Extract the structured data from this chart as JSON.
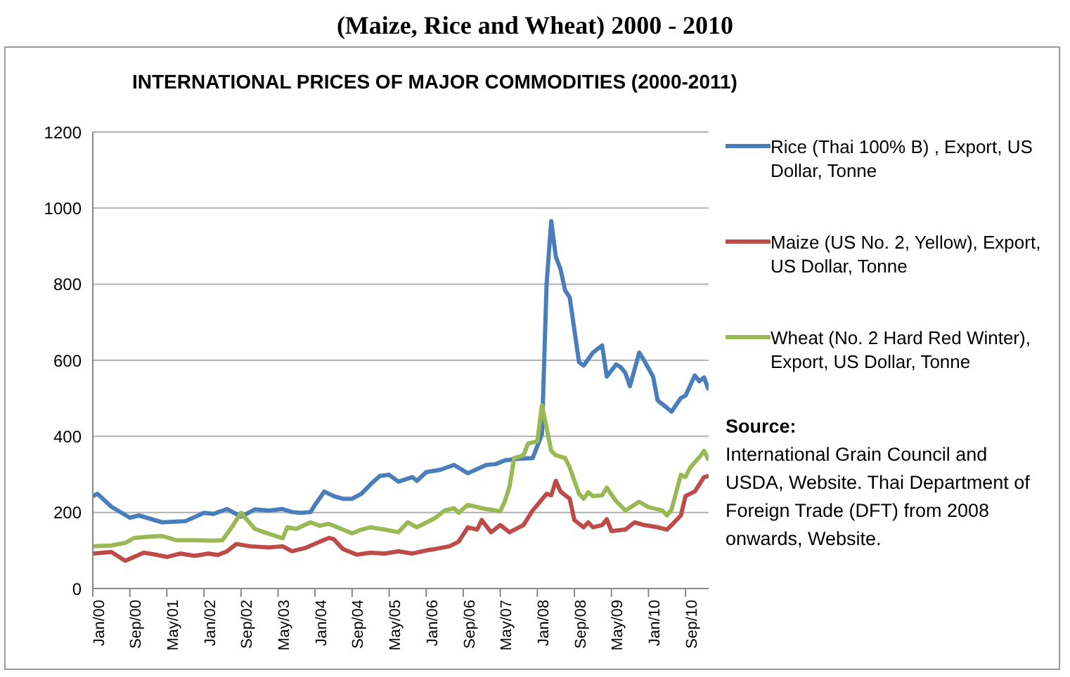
{
  "chart_data": {
    "type": "line",
    "title": "(Maize, Rice and Wheat) 2000 - 2010",
    "subtitle": "INTERNATIONAL PRICES OF MAJOR COMMODITIES (2000-2011)",
    "annotations": [
      "Source:",
      "International Grain Council and USDA, Website. Thai Department of Foreign Trade (DFT) from 2008 onwards, Website."
    ],
    "xlim": [
      "2000-01",
      "2011-02"
    ],
    "xticks": [
      {
        "value": "2000-01",
        "label": "Jan/00"
      },
      {
        "value": "2000-09",
        "label": "Sep/00"
      },
      {
        "value": "2001-05",
        "label": "May/01"
      },
      {
        "value": "2002-01",
        "label": "Jan/02"
      },
      {
        "value": "2002-09",
        "label": "Sep/02"
      },
      {
        "value": "2003-05",
        "label": "May/03"
      },
      {
        "value": "2004-01",
        "label": "Jan/04"
      },
      {
        "value": "2004-09",
        "label": "Sep/04"
      },
      {
        "value": "2005-05",
        "label": "May/05"
      },
      {
        "value": "2006-01",
        "label": "Jan/06"
      },
      {
        "value": "2006-09",
        "label": "Sep/06"
      },
      {
        "value": "2007-05",
        "label": "May/07"
      },
      {
        "value": "2008-01",
        "label": "Jan/08"
      },
      {
        "value": "2008-09",
        "label": "Sep/08"
      },
      {
        "value": "2009-05",
        "label": "May/09"
      },
      {
        "value": "2010-01",
        "label": "Jan/10"
      },
      {
        "value": "2010-09",
        "label": "Sep/10"
      }
    ],
    "ylim": [
      0,
      1200
    ],
    "yticks": [
      0,
      200,
      400,
      600,
      800,
      1000,
      1200
    ],
    "grid": "y",
    "legend": "right",
    "marker": "none",
    "line_style": "solid",
    "series": [
      {
        "name": "Rice (Thai 100% B) , Export, US Dollar, Tonne",
        "color": "#4a7ebb",
        "x": [
          "2000-01",
          "2000-02",
          "2000-05",
          "2000-09",
          "2000-11",
          "2001-04",
          "2001-09",
          "2002-01",
          "2002-03",
          "2002-06",
          "2002-09",
          "2002-12",
          "2003-03",
          "2003-06",
          "2003-08",
          "2003-10",
          "2003-12",
          "2004-01",
          "2004-03",
          "2004-05",
          "2004-07",
          "2004-09",
          "2004-11",
          "2005-01",
          "2005-03",
          "2005-05",
          "2005-07",
          "2005-10",
          "2005-11",
          "2006-01",
          "2006-04",
          "2006-07",
          "2006-10",
          "2007-02",
          "2007-04",
          "2007-06",
          "2007-09",
          "2007-12",
          "2008-02",
          "2008-03",
          "2008-04",
          "2008-05",
          "2008-06",
          "2008-07",
          "2008-08",
          "2008-10",
          "2008-11",
          "2009-01",
          "2009-03",
          "2009-04",
          "2009-06",
          "2009-07",
          "2009-08",
          "2009-09",
          "2009-11",
          "2009-12",
          "2010-02",
          "2010-03",
          "2010-05",
          "2010-06",
          "2010-08",
          "2010-09",
          "2010-11",
          "2010-12",
          "2011-01",
          "2011-02"
        ],
        "values": [
          243,
          249,
          215,
          186,
          192,
          174,
          177,
          199,
          196,
          209,
          189,
          208,
          205,
          209,
          201,
          199,
          201,
          220,
          255,
          243,
          236,
          236,
          249,
          274,
          296,
          299,
          281,
          293,
          283,
          306,
          312,
          325,
          303,
          325,
          327,
          337,
          341,
          343,
          406,
          800,
          966,
          872,
          840,
          784,
          765,
          595,
          586,
          620,
          639,
          557,
          589,
          582,
          567,
          532,
          620,
          601,
          557,
          494,
          475,
          465,
          501,
          507,
          560,
          545,
          555,
          522
        ]
      },
      {
        "name": "Maize (US No. 2, Yellow), Export, US Dollar, Tonne",
        "color": "#be4b48",
        "x": [
          "2000-01",
          "2000-05",
          "2000-08",
          "2000-12",
          "2001-03",
          "2001-05",
          "2001-08",
          "2001-11",
          "2002-02",
          "2002-04",
          "2002-06",
          "2002-08",
          "2002-11",
          "2003-03",
          "2003-06",
          "2003-08",
          "2003-11",
          "2004-02",
          "2004-04",
          "2004-05",
          "2004-07",
          "2004-10",
          "2005-01",
          "2005-04",
          "2005-07",
          "2005-10",
          "2006-01",
          "2006-03",
          "2006-06",
          "2006-08",
          "2006-10",
          "2006-12",
          "2007-01",
          "2007-03",
          "2007-05",
          "2007-07",
          "2007-10",
          "2007-12",
          "2008-03",
          "2008-04",
          "2008-05",
          "2008-06",
          "2008-08",
          "2008-09",
          "2008-11",
          "2008-12",
          "2009-01",
          "2009-03",
          "2009-04",
          "2009-05",
          "2009-08",
          "2009-10",
          "2009-12",
          "2010-03",
          "2010-05",
          "2010-06",
          "2010-08",
          "2010-09",
          "2010-11",
          "2010-12",
          "2011-01",
          "2011-02"
        ],
        "values": [
          92,
          96,
          73,
          94,
          88,
          83,
          92,
          86,
          92,
          88,
          98,
          117,
          111,
          108,
          111,
          98,
          107,
          123,
          133,
          130,
          104,
          89,
          94,
          92,
          98,
          92,
          100,
          104,
          111,
          123,
          161,
          155,
          180,
          148,
          167,
          148,
          167,
          205,
          249,
          245,
          283,
          255,
          236,
          180,
          161,
          174,
          161,
          167,
          182,
          151,
          155,
          174,
          167,
          161,
          155,
          167,
          192,
          243,
          255,
          274,
          293,
          296
        ]
      },
      {
        "name": "Wheat (No. 2 Hard Red Winter), Export, US Dollar, Tonne",
        "color": "#98b954",
        "x": [
          "2000-01",
          "2000-05",
          "2000-08",
          "2000-10",
          "2001-01",
          "2001-04",
          "2001-07",
          "2001-11",
          "2002-03",
          "2002-05",
          "2002-07",
          "2002-09",
          "2002-12",
          "2003-02",
          "2003-04",
          "2003-06",
          "2003-07",
          "2003-09",
          "2003-12",
          "2004-02",
          "2004-04",
          "2004-07",
          "2004-09",
          "2004-11",
          "2005-01",
          "2005-04",
          "2005-07",
          "2005-09",
          "2005-11",
          "2005-12",
          "2006-03",
          "2006-05",
          "2006-07",
          "2006-08",
          "2006-10",
          "2007-01",
          "2007-05",
          "2007-06",
          "2007-07",
          "2007-08",
          "2007-10",
          "2007-11",
          "2008-01",
          "2008-02",
          "2008-04",
          "2008-05",
          "2008-07",
          "2008-08",
          "2008-10",
          "2008-11",
          "2008-12",
          "2009-01",
          "2009-03",
          "2009-04",
          "2009-06",
          "2009-08",
          "2009-11",
          "2010-01",
          "2010-04",
          "2010-05",
          "2010-06",
          "2010-08",
          "2010-09",
          "2010-10",
          "2010-12",
          "2011-01",
          "2011-02"
        ],
        "values": [
          111,
          113,
          120,
          133,
          136,
          138,
          127,
          127,
          126,
          127,
          161,
          199,
          157,
          148,
          140,
          132,
          161,
          157,
          174,
          165,
          170,
          155,
          145,
          155,
          161,
          155,
          148,
          174,
          161,
          167,
          186,
          205,
          211,
          199,
          220,
          211,
          203,
          230,
          268,
          343,
          350,
          381,
          387,
          482,
          362,
          350,
          343,
          318,
          249,
          236,
          253,
          243,
          245,
          265,
          230,
          205,
          228,
          214,
          205,
          192,
          208,
          299,
          293,
          318,
          345,
          362,
          337
        ]
      }
    ]
  }
}
